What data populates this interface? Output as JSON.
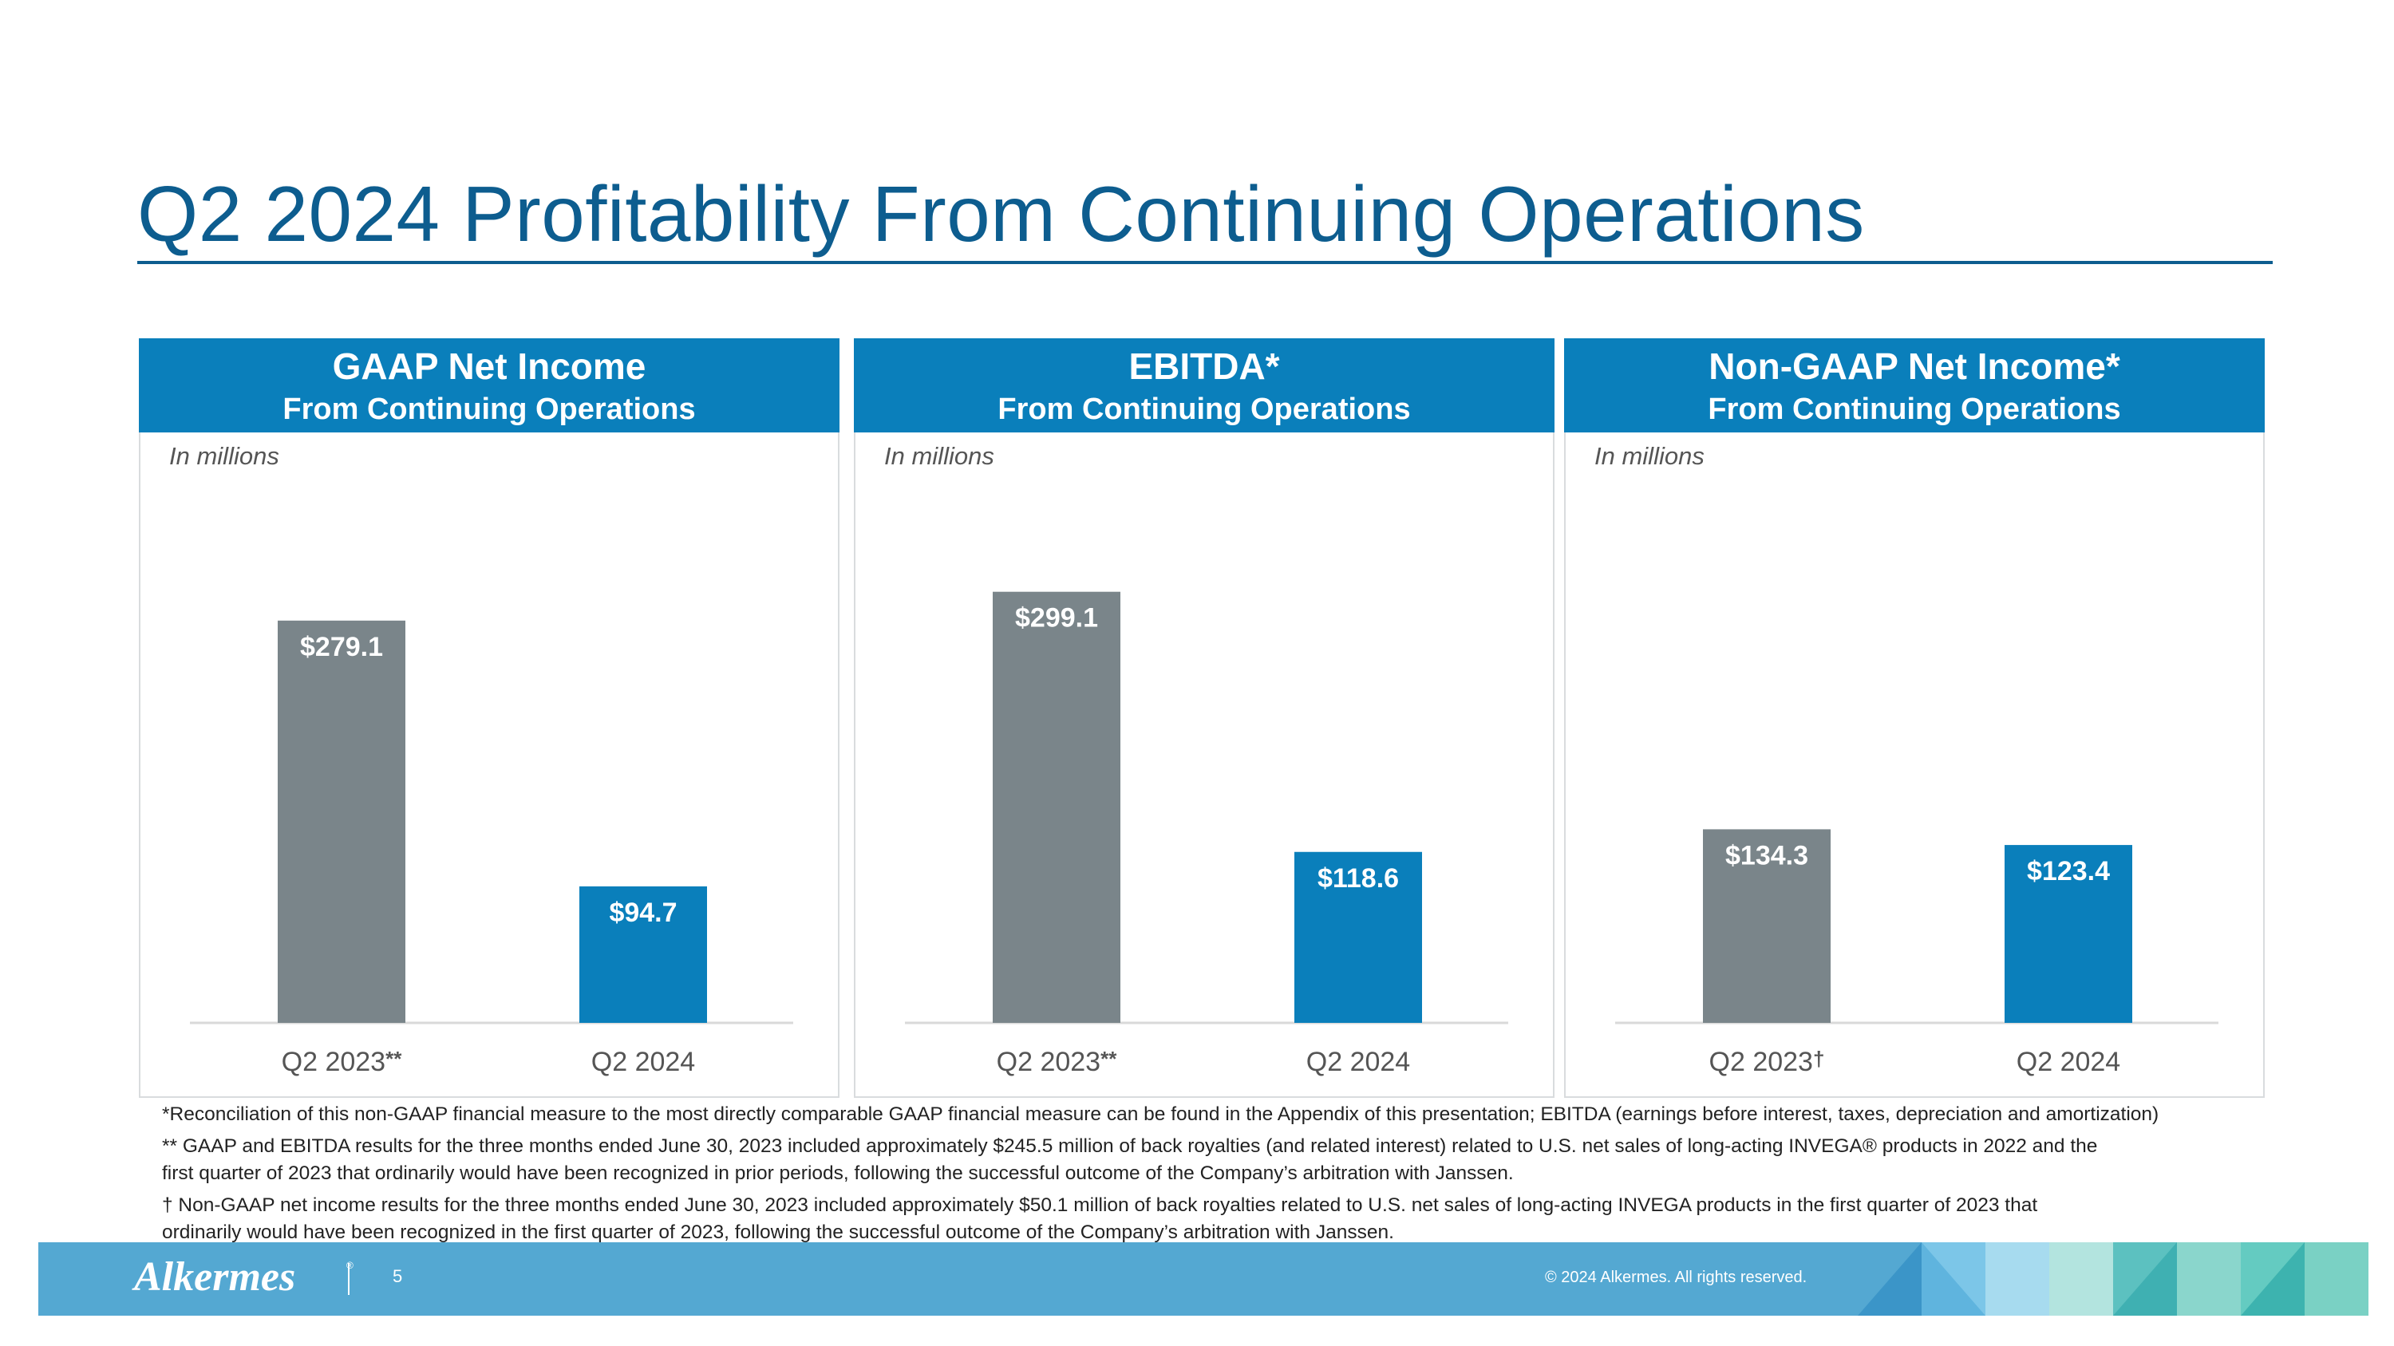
{
  "slide": {
    "title": "Q2 2024 Profitability From Continuing Operations",
    "page_number": "5",
    "copyright": "© 2024 Alkermes. All rights reserved.",
    "logo_text": "Alkermes",
    "logo_mark": "®"
  },
  "colors": {
    "prior": "#7a858a",
    "current": "#0a7fbb",
    "header": "#0a7fbb",
    "title": "#0d5d8f"
  },
  "chart_data": [
    {
      "type": "bar",
      "title": "GAAP Net Income",
      "subtitle": "From Continuing Operations",
      "unit_note": "In millions",
      "categories": [
        "Q2 2023",
        "Q2 2024"
      ],
      "category_marks": [
        "**",
        ""
      ],
      "values": [
        279.1,
        94.7
      ],
      "labels": [
        "$279.1",
        "$94.7"
      ],
      "ylim": [
        0,
        310
      ]
    },
    {
      "type": "bar",
      "title": "EBITDA*",
      "subtitle": "From Continuing Operations",
      "unit_note": "In millions",
      "categories": [
        "Q2 2023",
        "Q2 2024"
      ],
      "category_marks": [
        "**",
        ""
      ],
      "values": [
        299.1,
        118.6
      ],
      "labels": [
        "$299.1",
        "$118.6"
      ],
      "ylim": [
        0,
        310
      ]
    },
    {
      "type": "bar",
      "title": "Non-GAAP Net Income*",
      "subtitle": "From Continuing Operations",
      "unit_note": "In millions",
      "categories": [
        "Q2 2023",
        "Q2 2024"
      ],
      "category_marks": [
        "†",
        ""
      ],
      "values": [
        134.3,
        123.4
      ],
      "labels": [
        "$134.3",
        "$123.4"
      ],
      "ylim": [
        0,
        310
      ]
    }
  ],
  "footnotes": {
    "note1": "*Reconciliation of this non-GAAP financial measure to the most directly comparable GAAP financial measure can be found in the Appendix of this presentation; EBITDA (earnings before interest, taxes, depreciation and amortization)",
    "note2_line1": "** GAAP and EBITDA results for the three months ended June 30, 2023 included approximately $245.5 million of back royalties (and related interest) related to U.S. net sales of long-acting INVEGA® products in 2022 and the",
    "note2_line2": "first quarter of 2023 that ordinarily would have been recognized in prior periods, following the successful outcome of the Company’s arbitration with Janssen.",
    "note3_line1": "† Non-GAAP net income results for the three months ended June 30, 2023 included approximately $50.1 million of back royalties related to U.S. net sales of long-acting INVEGA products in the first quarter of 2023 that",
    "note3_line2": "ordinarily would have been recognized in the first quarter of 2023, following the successful outcome of the Company’s arbitration with Janssen."
  }
}
